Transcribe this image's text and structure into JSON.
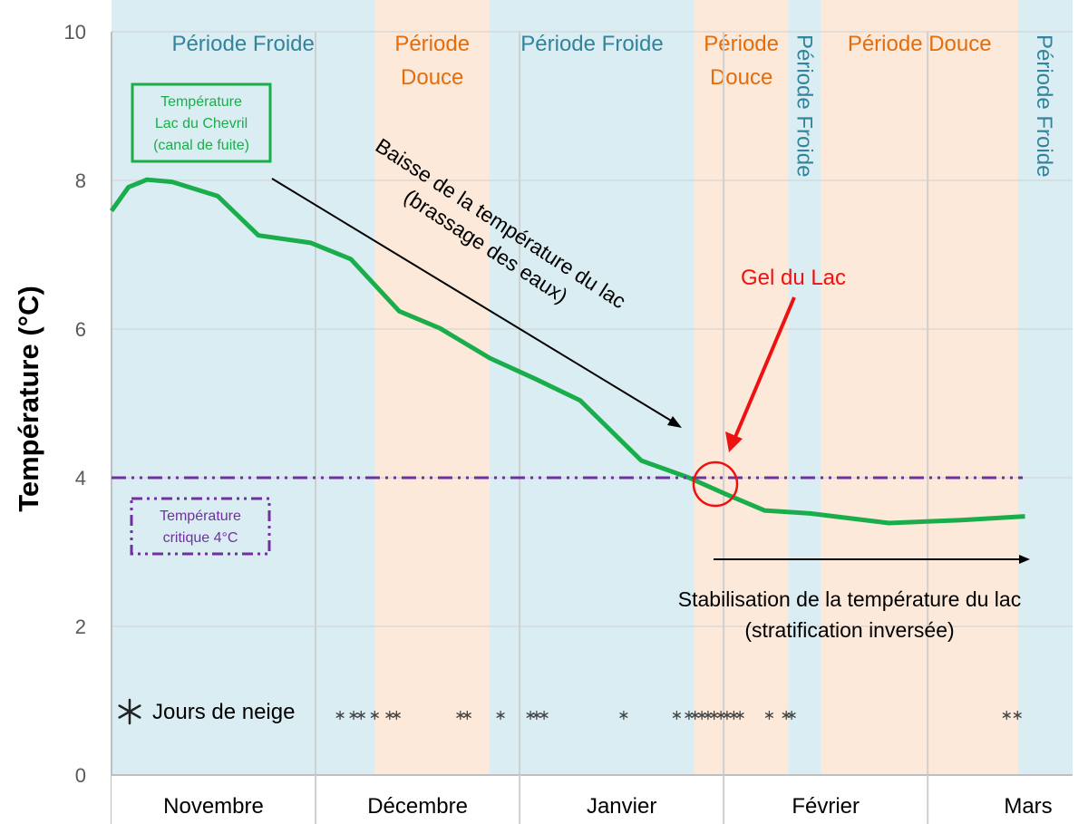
{
  "chart_data": {
    "type": "line",
    "title": "",
    "ylabel": "Température (°C)",
    "xlabel": "",
    "ylim": [
      0,
      10
    ],
    "yticks": [
      "0",
      "2",
      "4",
      "6",
      "8",
      "10"
    ],
    "x_unit": "days since 1 November",
    "xlim": [
      0,
      141.3
    ],
    "months": [
      {
        "label": "Novembre",
        "start": 0,
        "end": 30
      },
      {
        "label": "Décembre",
        "start": 30,
        "end": 60
      },
      {
        "label": "Janvier",
        "start": 60,
        "end": 90
      },
      {
        "label": "Février",
        "start": 90,
        "end": 120
      },
      {
        "label": "Mars",
        "start": 120,
        "end": 141.3
      }
    ],
    "grid": true,
    "series": [
      {
        "name": "Température Lac du Chevril (canal de fuite)",
        "color": "#1aad4b",
        "x": [
          0,
          2.5,
          5.2,
          8.9,
          15.6,
          21.6,
          29.3,
          35.2,
          42.3,
          48.3,
          55.6,
          62.3,
          68.9,
          77.9,
          84.9,
          90.3,
          96,
          102.7,
          114.3,
          124.9,
          134.3
        ],
        "y": [
          7.59,
          7.91,
          8.01,
          7.98,
          7.79,
          7.26,
          7.16,
          6.94,
          6.24,
          6.01,
          5.61,
          5.33,
          5.04,
          4.23,
          4.0,
          3.78,
          3.56,
          3.52,
          3.39,
          3.43,
          3.48
        ]
      },
      {
        "name": "Température critique 4°C",
        "color": "#7030a0",
        "style": "dash-dot-dot",
        "y_constant": 4
      }
    ],
    "periods": [
      {
        "label": "Période Froide",
        "type": "froide",
        "start": 0,
        "end": 38.7
      },
      {
        "label": "Période Douce",
        "type": "douce",
        "start": 38.7,
        "end": 55.6
      },
      {
        "label": "Période Froide",
        "type": "froide",
        "start": 55.6,
        "end": 85.7
      },
      {
        "label": "Période Douce",
        "type": "douce",
        "start": 85.7,
        "end": 99.5
      },
      {
        "label": "Période Froide",
        "type": "froide",
        "start": 99.5,
        "end": 104.3
      },
      {
        "label": "Période Douce",
        "type": "douce",
        "start": 104.3,
        "end": 133.3
      },
      {
        "label": "Période Froide",
        "type": "froide",
        "start": 133.3,
        "end": 141.3
      }
    ],
    "snow_days_label": "Jours de neige",
    "snow_days": [
      33.6,
      35.6,
      36.7,
      38.7,
      40.9,
      41.9,
      51.3,
      52.3,
      57.2,
      61.6,
      62.5,
      63.6,
      75.3,
      83.1,
      84.9,
      85.8,
      86.8,
      87.7,
      88.6,
      89.6,
      90.5,
      91.5,
      92.4,
      96.7,
      99.2,
      100,
      131.6,
      133.2
    ],
    "annotations": {
      "legend_lake_lines": [
        "Température",
        "Lac du Chevril",
        "(canal de fuite)"
      ],
      "legend_critical_lines": [
        "Température",
        "critique 4°C"
      ],
      "decline_lines": [
        "Baisse de la température du lac",
        "(brassage des eaux)"
      ],
      "freeze": "Gel du Lac",
      "stabilisation_lines": [
        "Stabilisation de la température du lac",
        "(stratification inversée)"
      ]
    },
    "colors": {
      "froide_bg": "#daedf3",
      "douce_bg": "#fde9d9",
      "froide_text": "#31849b",
      "douce_text": "#e46c0a",
      "freeze": "#ee1111"
    }
  }
}
